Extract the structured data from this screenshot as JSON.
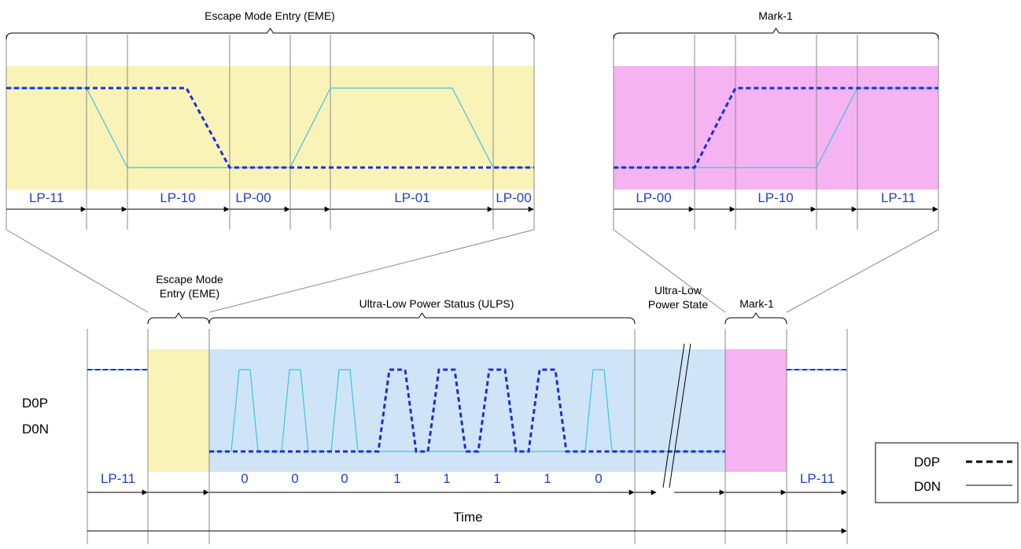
{
  "colors": {
    "eme_fill": "#faf3b8",
    "mark_fill": "#f5b3f2",
    "ulps_fill": "#cfe4f7",
    "d0p_line": "#1c2fd6",
    "d0n_line": "#3cc4e0",
    "outline": "#000000",
    "state_text": "#1f3fd0"
  },
  "eme_detail": {
    "title": "Escape Mode Entry (EME)",
    "states": [
      "LP-11",
      "LP-10",
      "LP-00",
      "LP-01",
      "LP-00"
    ]
  },
  "mark_detail": {
    "title": "Mark-1",
    "states": [
      "LP-00",
      "LP-10",
      "LP-11"
    ]
  },
  "timeline": {
    "eme_label": "Escape Mode\nEntry (EME)",
    "ulps_label": "Ultra-Low Power Status (ULPS)",
    "ulp_state_label": "Ultra-Low\nPower State",
    "mark_label": "Mark-1",
    "signal_names": [
      "D0P",
      "D0N"
    ],
    "start_state": "LP-11",
    "end_state": "LP-11",
    "bits": [
      "0",
      "0",
      "0",
      "1",
      "1",
      "1",
      "1",
      "0"
    ],
    "time_label": "Time"
  },
  "legend": {
    "items": [
      {
        "name": "D0P",
        "style": "dashed"
      },
      {
        "name": "D0N",
        "style": "solid"
      }
    ]
  },
  "icons": {
    "time_axis": "arrow-right-icon",
    "break_mark": "double-slash-icon"
  }
}
